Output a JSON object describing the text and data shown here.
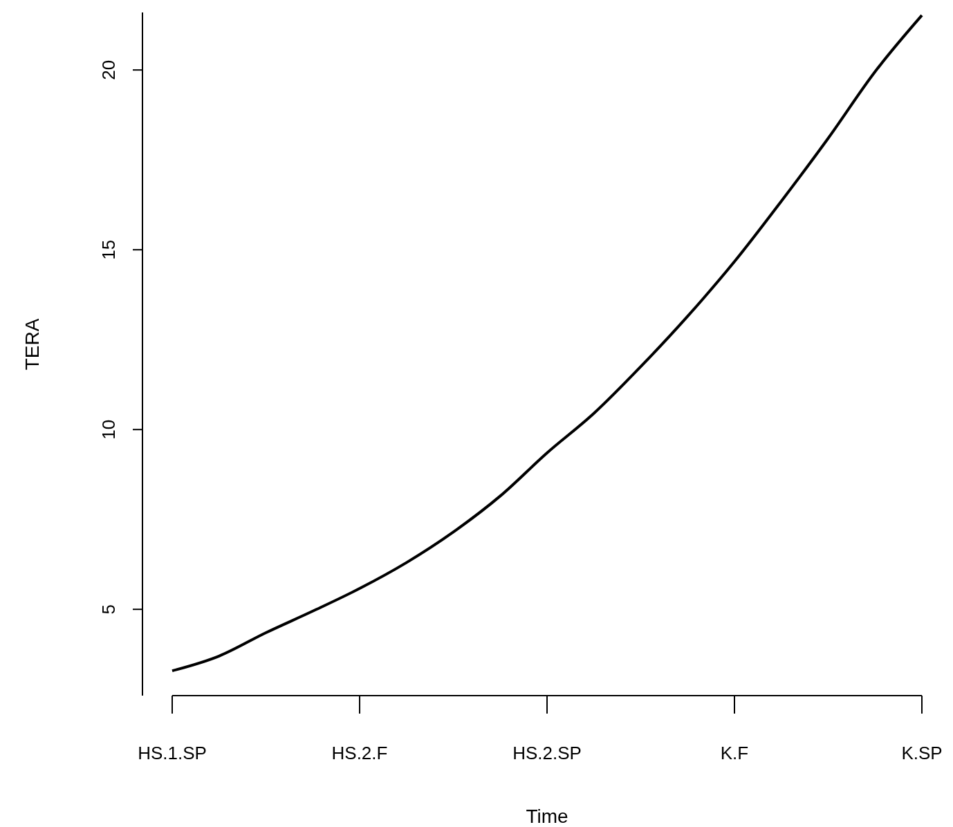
{
  "chart_data": {
    "type": "line",
    "xlabel": "Time",
    "ylabel": "TERA",
    "categories": [
      "HS.1.SP",
      null,
      null,
      null,
      "HS.2.F",
      null,
      null,
      null,
      "HS.2.SP",
      null,
      null,
      null,
      "K.F",
      null,
      null,
      null,
      "K.SP"
    ],
    "series": [
      {
        "color": "#000000",
        "values": [
          3.29,
          3.7,
          4.35,
          4.95,
          5.58,
          6.3,
          7.15,
          8.15,
          9.35,
          10.45,
          11.75,
          13.15,
          14.67,
          16.35,
          18.1,
          19.95,
          21.52
        ]
      }
    ],
    "ylim": [
      2.6,
      21.6
    ],
    "yticks": [
      5,
      10,
      15,
      20
    ],
    "marker": "none",
    "line_style": "solid"
  }
}
